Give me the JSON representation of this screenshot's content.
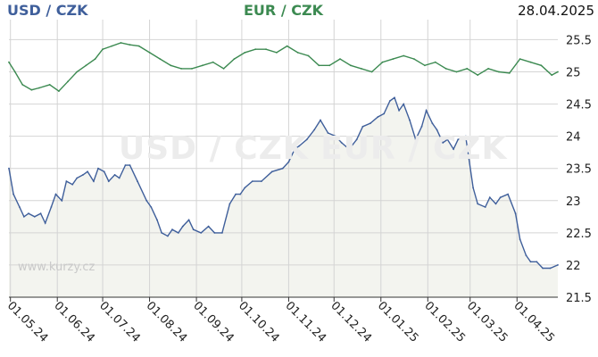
{
  "header": {
    "pair_primary": "USD / CZK",
    "pair_secondary": "EUR / CZK",
    "date": "28.04.2025"
  },
  "watermark": "USD / CZK  EUR / CZK",
  "site": "www.kurzy.cz",
  "colors": {
    "usd_line": "#3f5f9b",
    "eur_line": "#3c8a51",
    "usd_fill": "#f3f4ef",
    "grid": "#d4d4d4",
    "axis": "#333333"
  },
  "chart_data": {
    "type": "line",
    "title": "",
    "xlabel": "",
    "ylabel": "",
    "ylim": [
      21.5,
      25.7
    ],
    "y_ticks": [
      21.5,
      22,
      22.5,
      23,
      23.5,
      24,
      24.5,
      25,
      25.5
    ],
    "y_tick_labels": [
      "21.5",
      "22",
      "22.5",
      "23",
      "23.5",
      "24",
      "24.5",
      "25",
      "25.5"
    ],
    "x_range": [
      "2024-04-30",
      "2025-04-28"
    ],
    "x_ticks": [
      "2024-05-01",
      "2024-06-01",
      "2024-07-01",
      "2024-08-01",
      "2024-09-01",
      "2024-10-01",
      "2024-11-01",
      "2024-12-01",
      "2025-01-01",
      "2025-02-01",
      "2025-03-01",
      "2025-04-01"
    ],
    "x_tick_labels": [
      "01.05.24",
      "01.06.24",
      "01.07.24",
      "01.08.24",
      "01.09.24",
      "01.10.24",
      "01.11.24",
      "01.12.24",
      "01.01.25",
      "01.02.25",
      "01.03.25",
      "01.04.25"
    ],
    "grid": true,
    "series": [
      {
        "name": "USD / CZK",
        "x": [
          "2024-04-30",
          "2024-05-03",
          "2024-05-07",
          "2024-05-10",
          "2024-05-13",
          "2024-05-17",
          "2024-05-21",
          "2024-05-24",
          "2024-05-28",
          "2024-05-31",
          "2024-06-04",
          "2024-06-07",
          "2024-06-11",
          "2024-06-14",
          "2024-06-18",
          "2024-06-21",
          "2024-06-25",
          "2024-06-28",
          "2024-07-02",
          "2024-07-05",
          "2024-07-09",
          "2024-07-12",
          "2024-07-16",
          "2024-07-19",
          "2024-07-24",
          "2024-07-30",
          "2024-08-02",
          "2024-08-06",
          "2024-08-09",
          "2024-08-13",
          "2024-08-16",
          "2024-08-20",
          "2024-08-23",
          "2024-08-27",
          "2024-08-30",
          "2024-09-04",
          "2024-09-09",
          "2024-09-13",
          "2024-09-18",
          "2024-09-23",
          "2024-09-27",
          "2024-09-30",
          "2024-10-03",
          "2024-10-08",
          "2024-10-14",
          "2024-10-21",
          "2024-10-28",
          "2024-11-01",
          "2024-11-05",
          "2024-11-08",
          "2024-11-13",
          "2024-11-18",
          "2024-11-22",
          "2024-11-27",
          "2024-12-02",
          "2024-12-06",
          "2024-12-11",
          "2024-12-16",
          "2024-12-20",
          "2024-12-25",
          "2024-12-30",
          "2025-01-03",
          "2025-01-07",
          "2025-01-10",
          "2025-01-13",
          "2025-01-16",
          "2025-01-20",
          "2025-01-24",
          "2025-01-28",
          "2025-01-31",
          "2025-02-04",
          "2025-02-07",
          "2025-02-11",
          "2025-02-14",
          "2025-02-18",
          "2025-02-21",
          "2025-02-26",
          "2025-03-03",
          "2025-03-06",
          "2025-03-11",
          "2025-03-14",
          "2025-03-18",
          "2025-03-21",
          "2025-03-26",
          "2025-03-31",
          "2025-04-03",
          "2025-04-07",
          "2025-04-10",
          "2025-04-14",
          "2025-04-18",
          "2025-04-23",
          "2025-04-28"
        ],
        "values": [
          23.5,
          23.1,
          22.9,
          22.75,
          22.8,
          22.75,
          22.8,
          22.65,
          22.9,
          23.1,
          23.0,
          23.3,
          23.25,
          23.35,
          23.4,
          23.45,
          23.3,
          23.5,
          23.45,
          23.3,
          23.4,
          23.35,
          23.55,
          23.55,
          23.3,
          23.0,
          22.9,
          22.7,
          22.5,
          22.45,
          22.55,
          22.5,
          22.6,
          22.7,
          22.55,
          22.5,
          22.6,
          22.5,
          22.5,
          22.95,
          23.1,
          23.1,
          23.2,
          23.3,
          23.3,
          23.45,
          23.5,
          23.6,
          23.8,
          23.85,
          23.95,
          24.1,
          24.25,
          24.05,
          24.0,
          23.9,
          23.8,
          23.95,
          24.15,
          24.2,
          24.3,
          24.35,
          24.55,
          24.6,
          24.4,
          24.5,
          24.25,
          23.95,
          24.15,
          24.4,
          24.2,
          24.1,
          23.9,
          23.95,
          23.8,
          23.95,
          24.0,
          23.2,
          22.95,
          22.9,
          23.05,
          22.95,
          23.05,
          23.1,
          22.8,
          22.4,
          22.15,
          22.05,
          22.05,
          21.95,
          21.95,
          22.0
        ]
      },
      {
        "name": "EUR / CZK",
        "x": [
          "2024-04-30",
          "2024-05-04",
          "2024-05-09",
          "2024-05-15",
          "2024-05-20",
          "2024-05-27",
          "2024-06-02",
          "2024-06-08",
          "2024-06-14",
          "2024-06-20",
          "2024-06-26",
          "2024-07-01",
          "2024-07-07",
          "2024-07-13",
          "2024-07-19",
          "2024-07-25",
          "2024-08-01",
          "2024-08-08",
          "2024-08-15",
          "2024-08-22",
          "2024-08-29",
          "2024-09-05",
          "2024-09-12",
          "2024-09-19",
          "2024-09-26",
          "2024-10-03",
          "2024-10-10",
          "2024-10-17",
          "2024-10-24",
          "2024-10-31",
          "2024-11-07",
          "2024-11-14",
          "2024-11-21",
          "2024-11-28",
          "2024-12-05",
          "2024-12-12",
          "2024-12-19",
          "2024-12-26",
          "2025-01-02",
          "2025-01-09",
          "2025-01-16",
          "2025-01-23",
          "2025-01-30",
          "2025-02-06",
          "2025-02-13",
          "2025-02-20",
          "2025-02-27",
          "2025-03-06",
          "2025-03-13",
          "2025-03-20",
          "2025-03-27",
          "2025-04-03",
          "2025-04-10",
          "2025-04-17",
          "2025-04-24",
          "2025-04-28"
        ],
        "values": [
          25.15,
          25.0,
          24.8,
          24.72,
          24.75,
          24.8,
          24.7,
          24.85,
          25.0,
          25.1,
          25.2,
          25.35,
          25.4,
          25.45,
          25.42,
          25.4,
          25.3,
          25.2,
          25.1,
          25.05,
          25.05,
          25.1,
          25.15,
          25.05,
          25.2,
          25.3,
          25.35,
          25.35,
          25.3,
          25.4,
          25.3,
          25.25,
          25.1,
          25.1,
          25.2,
          25.1,
          25.05,
          25.0,
          25.15,
          25.2,
          25.25,
          25.2,
          25.1,
          25.15,
          25.05,
          25.0,
          25.05,
          24.95,
          25.05,
          25.0,
          24.98,
          25.2,
          25.15,
          25.1,
          24.95,
          25.0
        ]
      }
    ]
  }
}
